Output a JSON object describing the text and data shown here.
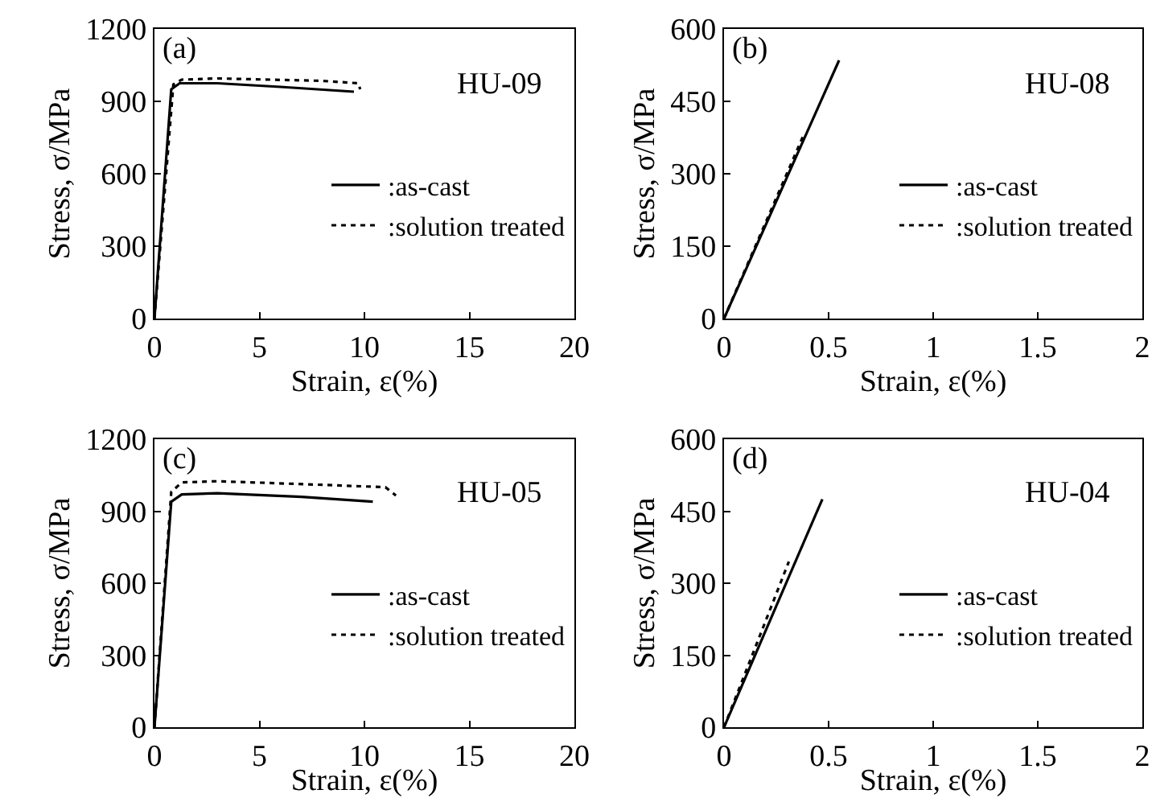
{
  "chart_data": [
    {
      "type": "line",
      "xlabel": "Strain, ε(%)",
      "ylabel": "Stress, σ/MPa",
      "annotations": [
        "(a)",
        "HU-09"
      ],
      "xlim": [
        0,
        20
      ],
      "xticks": [
        0,
        5,
        10,
        15,
        20
      ],
      "ylim": [
        0,
        1200
      ],
      "yticks": [
        0,
        300,
        600,
        900,
        1200
      ],
      "legend": "right",
      "marker": "none",
      "series": [
        {
          "name": ":as-cast",
          "color": "#000000",
          "line_style": "solid",
          "x": [
            0,
            0.8,
            1.2,
            3,
            6,
            9.5
          ],
          "values": [
            0,
            950,
            975,
            975,
            960,
            940
          ]
        },
        {
          "name": ":solution treated",
          "color": "#000000",
          "line_style": "dotted",
          "x": [
            0,
            0.9,
            1.3,
            3,
            8,
            9.7,
            9.8
          ],
          "values": [
            0,
            970,
            990,
            995,
            985,
            975,
            950
          ]
        }
      ]
    },
    {
      "type": "line",
      "xlabel": "Strain, ε(%)",
      "ylabel": "Stress, σ/MPa",
      "annotations": [
        "(b)",
        "HU-08"
      ],
      "xlim": [
        0,
        2
      ],
      "xticks": [
        0,
        0.5,
        1,
        1.5,
        2
      ],
      "ylim": [
        0,
        600
      ],
      "yticks": [
        0,
        150,
        300,
        450,
        600
      ],
      "legend": "right",
      "marker": "none",
      "series": [
        {
          "name": ":as-cast",
          "color": "#000000",
          "line_style": "solid",
          "x": [
            0,
            0.55
          ],
          "values": [
            0,
            535
          ]
        },
        {
          "name": ":solution treated",
          "color": "#000000",
          "line_style": "dotted",
          "x": [
            0,
            0.38
          ],
          "values": [
            0,
            380
          ]
        }
      ]
    },
    {
      "type": "line",
      "xlabel": "Strain, ε(%)",
      "ylabel": "Stress, σ/MPa",
      "annotations": [
        "(c)",
        "HU-05"
      ],
      "xlim": [
        0,
        20
      ],
      "xticks": [
        0,
        5,
        10,
        15,
        20
      ],
      "ylim": [
        0,
        1200
      ],
      "yticks": [
        0,
        300,
        600,
        900,
        1200
      ],
      "legend": "right",
      "marker": "none",
      "series": [
        {
          "name": ":as-cast",
          "color": "#000000",
          "line_style": "solid",
          "x": [
            0,
            0.8,
            1.3,
            3,
            7,
            10.4
          ],
          "values": [
            0,
            940,
            970,
            975,
            960,
            940
          ]
        },
        {
          "name": ":solution treated",
          "color": "#000000",
          "line_style": "dotted",
          "x": [
            0,
            0.8,
            1.3,
            3,
            8,
            11,
            11.5
          ],
          "values": [
            0,
            980,
            1020,
            1025,
            1010,
            1000,
            965
          ]
        }
      ]
    },
    {
      "type": "line",
      "xlabel": "Strain, ε(%)",
      "ylabel": "Stress, σ/MPa",
      "annotations": [
        "(d)",
        "HU-04"
      ],
      "xlim": [
        0,
        2
      ],
      "xticks": [
        0,
        0.5,
        1,
        1.5,
        2
      ],
      "ylim": [
        0,
        600
      ],
      "yticks": [
        0,
        150,
        300,
        450,
        600
      ],
      "legend": "right",
      "marker": "none",
      "series": [
        {
          "name": ":as-cast",
          "color": "#000000",
          "line_style": "solid",
          "x": [
            0,
            0.47
          ],
          "values": [
            0,
            475
          ]
        },
        {
          "name": ":solution treated",
          "color": "#000000",
          "line_style": "dotted",
          "x": [
            0,
            0.31
          ],
          "values": [
            0,
            345
          ]
        }
      ]
    }
  ]
}
